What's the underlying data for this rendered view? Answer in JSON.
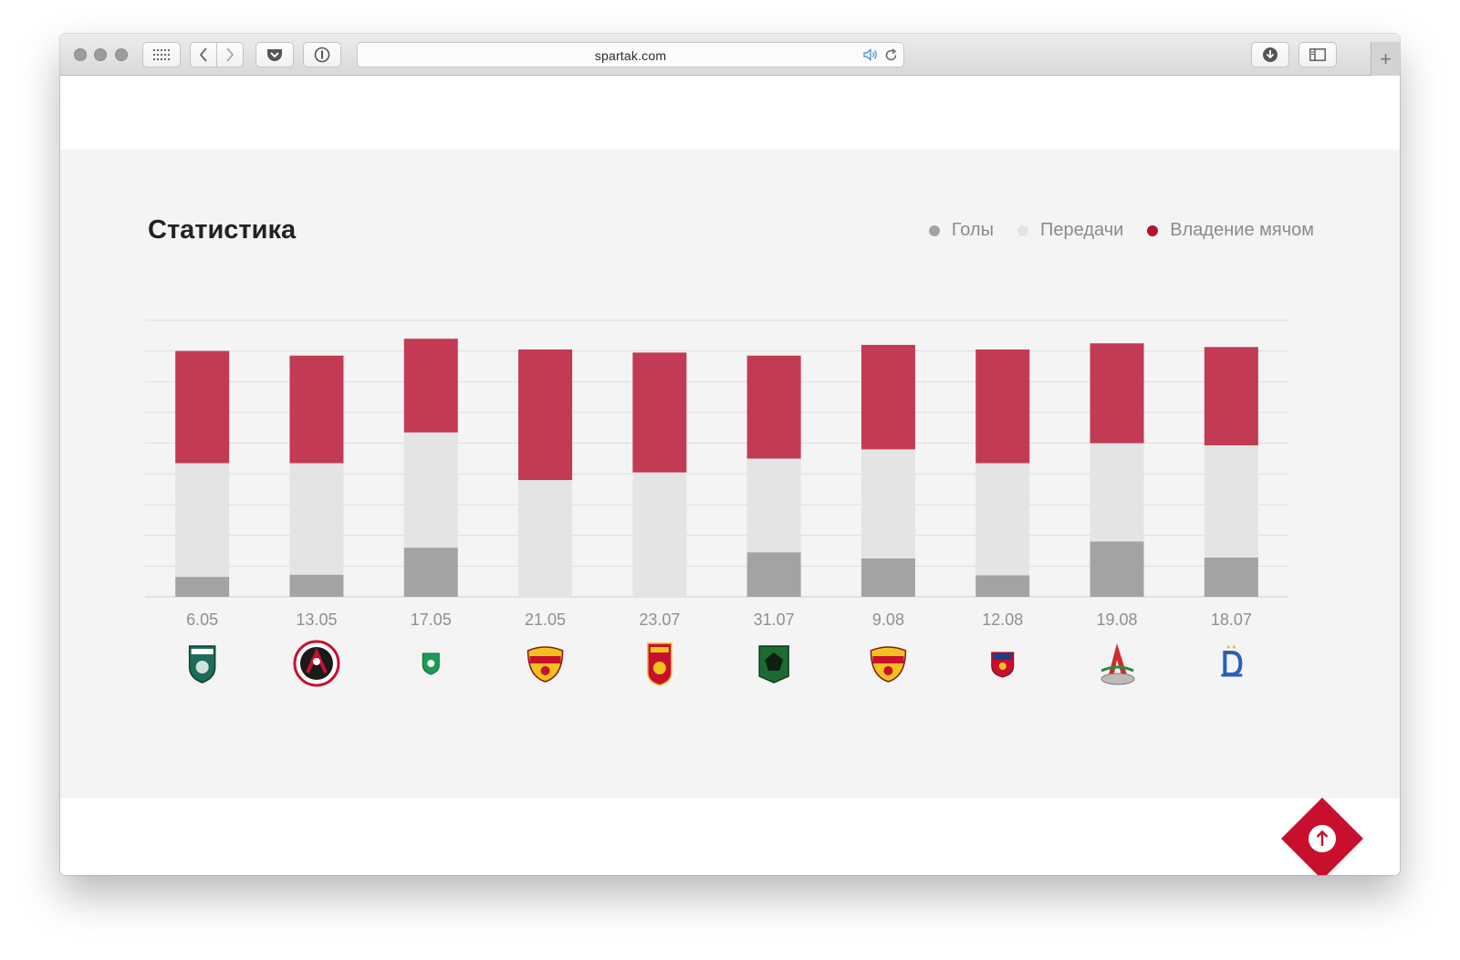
{
  "browser": {
    "url": "spartak.com"
  },
  "page": {
    "title": "Статистика",
    "legend": [
      {
        "label": "Голы",
        "color": "#a3a3a3"
      },
      {
        "label": "Передачи",
        "color": "#e4e4e4"
      },
      {
        "label": "Владение мячом",
        "color": "#b8102e"
      }
    ]
  },
  "chart_data": {
    "type": "bar",
    "stacked": true,
    "categories": [
      "6.05",
      "13.05",
      "17.05",
      "21.05",
      "23.07",
      "31.07",
      "9.08",
      "12.08",
      "19.08",
      "18.07"
    ],
    "series": [
      {
        "name": "Голы",
        "color": "#a3a3a3",
        "values": [
          6.5,
          7.2,
          16.0,
          0,
          0,
          14.5,
          12.5,
          7.0,
          18.0,
          12.8
        ]
      },
      {
        "name": "Передачи",
        "color": "#e4e4e4",
        "values": [
          37.0,
          36.3,
          37.5,
          38.0,
          40.5,
          30.5,
          35.5,
          36.5,
          32.0,
          36.5
        ]
      },
      {
        "name": "Владение мячом",
        "color": "#c23a53",
        "values": [
          36.5,
          35.0,
          30.5,
          42.5,
          39.0,
          33.5,
          34.0,
          37.0,
          32.5,
          32.0
        ]
      }
    ],
    "ylim": [
      0,
      90
    ],
    "gridlines": 9,
    "grid": true,
    "legend_position": "top-right",
    "team_icons": [
      "tom-crest-icon",
      "amkar-crest-icon",
      "akhmat-crest-icon",
      "arsenal-crest-icon",
      "ufa-crest-icon",
      "krasnodar-crest-icon",
      "arsenal-crest-icon",
      "cska-crest-icon",
      "lokomotiv-crest-icon",
      "dynamo-crest-icon"
    ]
  }
}
